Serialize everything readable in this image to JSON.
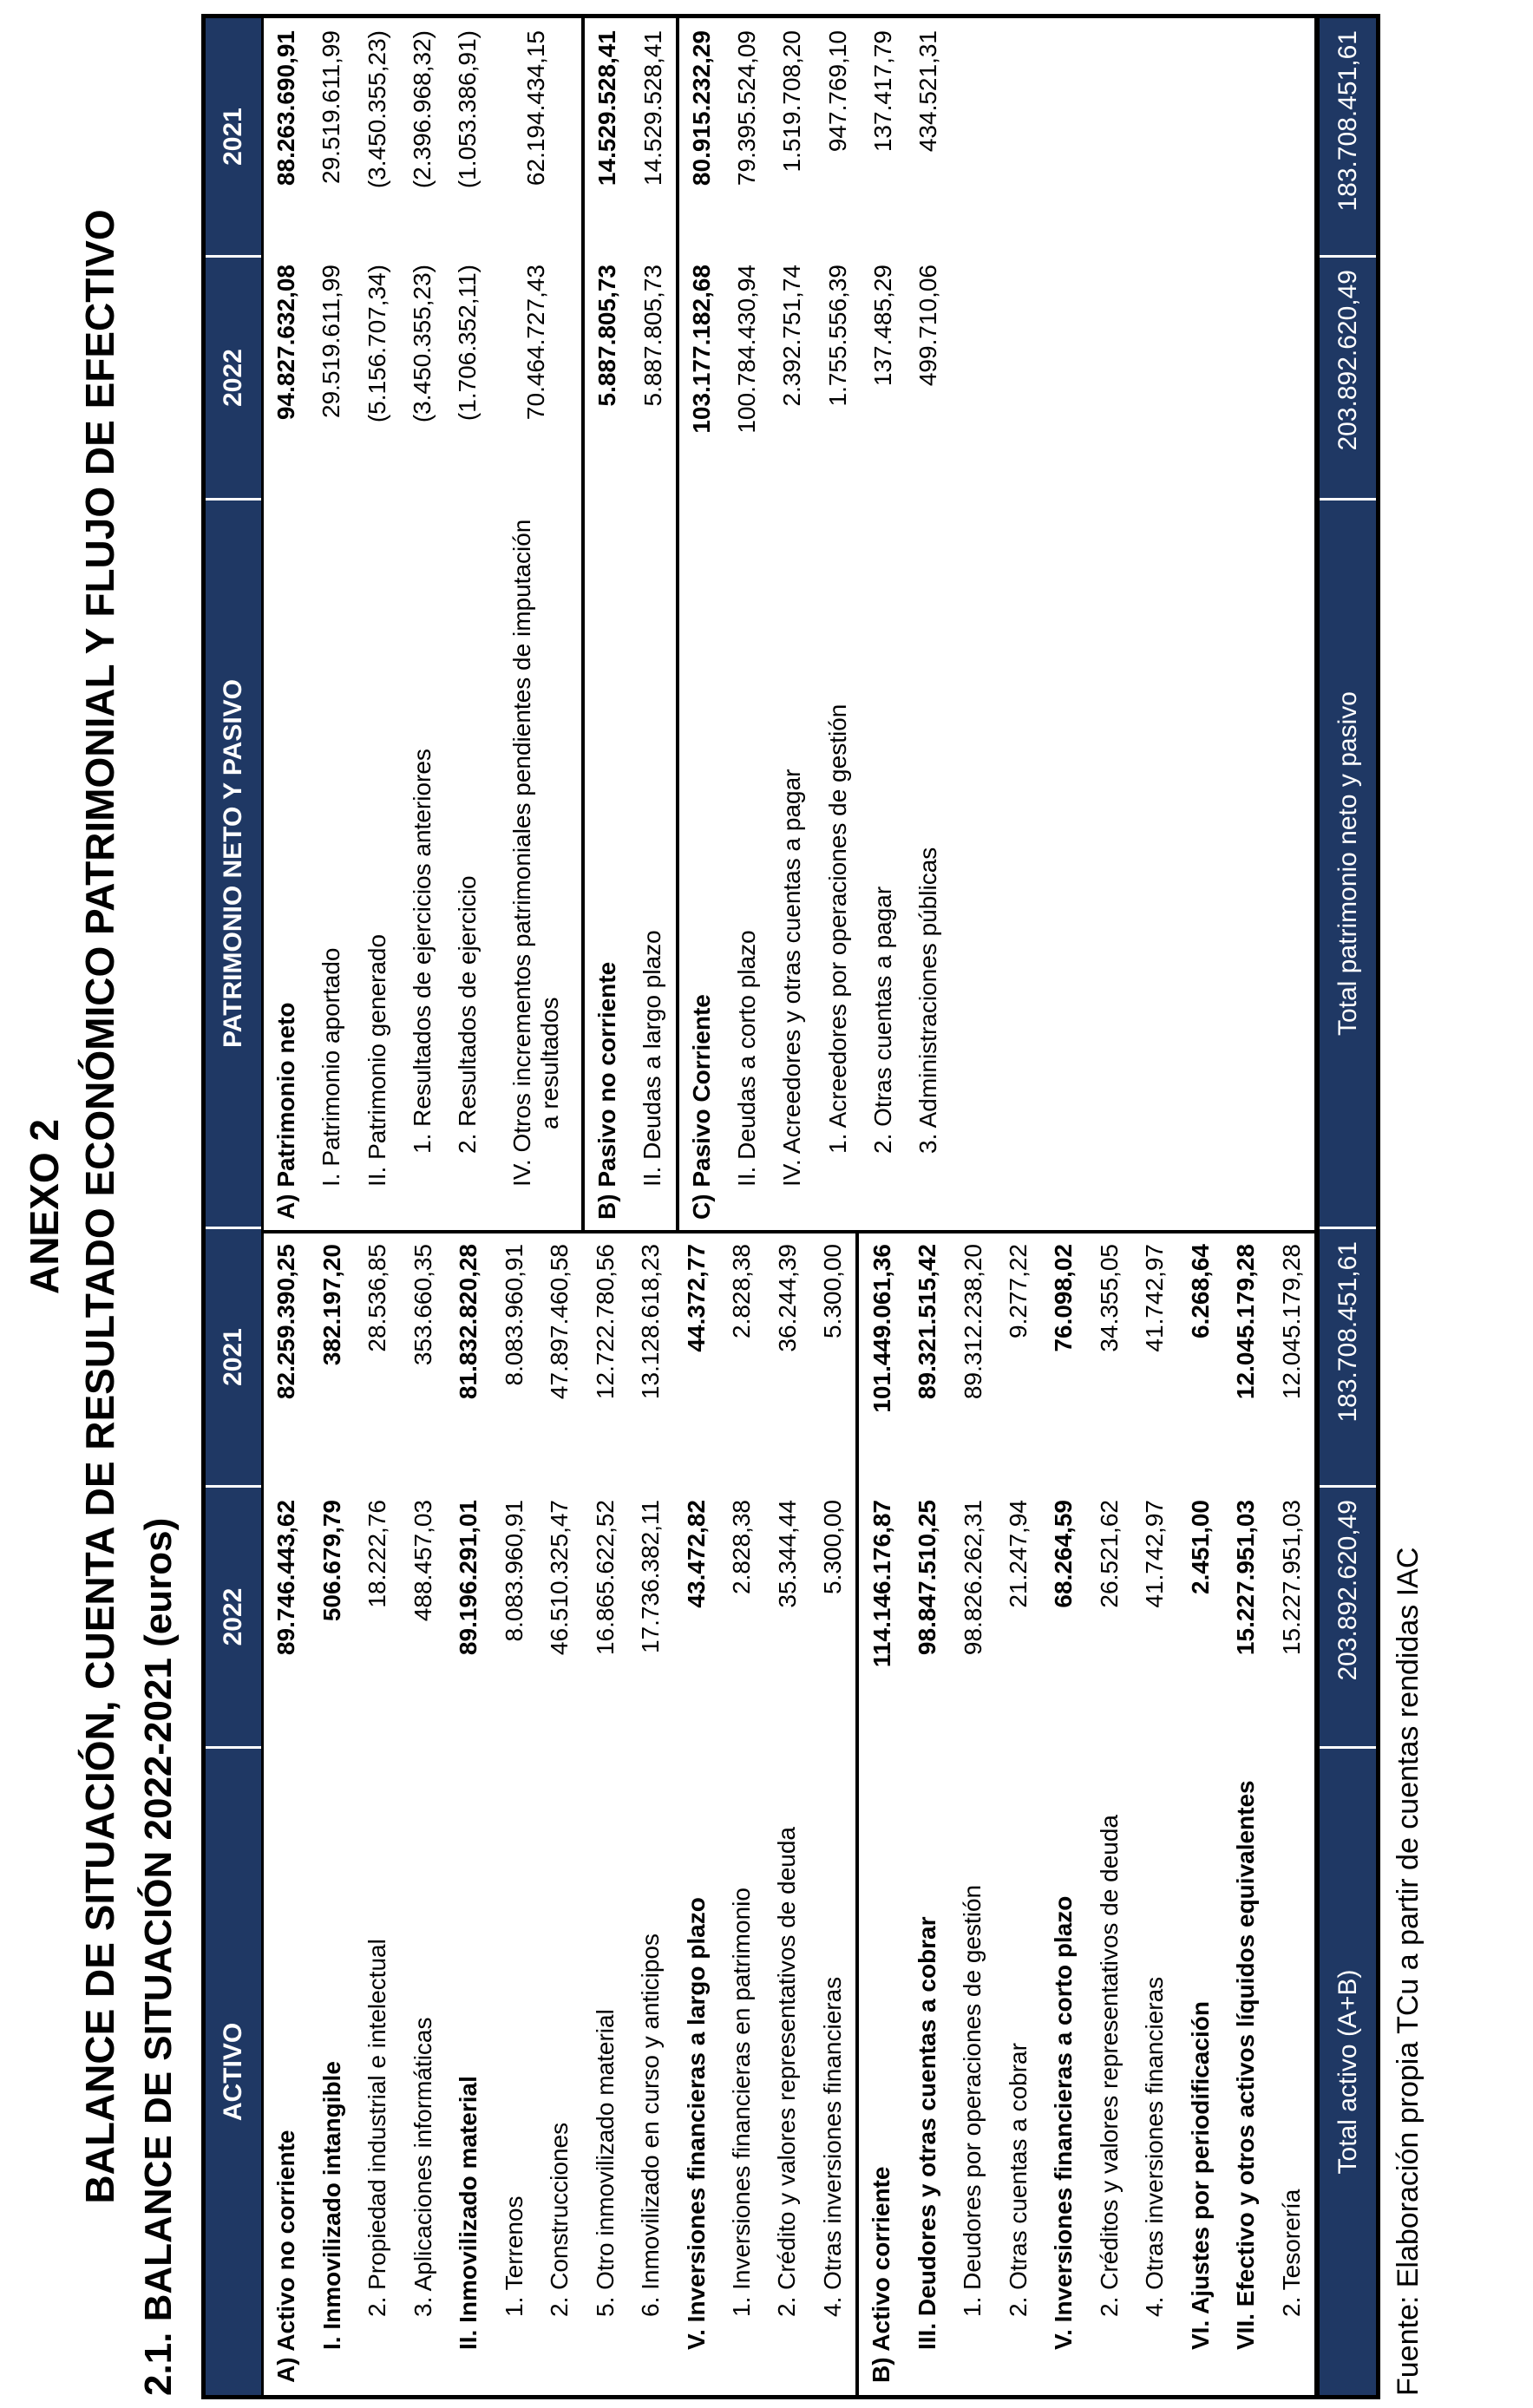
{
  "page": {
    "title_line1": "ANEXO 2",
    "title_line2": "BALANCE DE SITUACIÓN, CUENTA DE RESULTADO ECONÓMICO PATRIMONIAL Y FLUJO DE EFECTIVO",
    "subtitle": "2.1. BALANCE DE SITUACIÓN 2022-2021 (euros)",
    "source_note": "Fuente: Elaboración propia TCu a partir de cuentas rendidas IAC",
    "colors": {
      "band_bg": "#1f3864",
      "band_text": "#ffffff",
      "border": "#000000"
    }
  },
  "table": {
    "activo": {
      "header": "ACTIVO",
      "col_2022": "2022",
      "col_2021": "2021",
      "rows": [
        {
          "label": "A) Activo no corriente",
          "v2022": "89.746.443,62",
          "v2021": "82.259.390,25",
          "bold": true,
          "indent": 0
        },
        {
          "label": "I. Inmovilizado intangible",
          "v2022": "506.679,79",
          "v2021": "382.197,20",
          "bold": true,
          "indent": 1
        },
        {
          "label": "2. Propiedad industrial e intelectual",
          "v2022": "18.222,76",
          "v2021": "28.536,85",
          "bold": false,
          "indent": 2
        },
        {
          "label": "3. Aplicaciones informáticas",
          "v2022": "488.457,03",
          "v2021": "353.660,35",
          "bold": false,
          "indent": 2
        },
        {
          "label": "II. Inmovilizado material",
          "v2022": "89.196.291,01",
          "v2021": "81.832.820,28",
          "bold": true,
          "indent": 1
        },
        {
          "label": "1. Terrenos",
          "v2022": "8.083.960,91",
          "v2021": "8.083.960,91",
          "bold": false,
          "indent": 2
        },
        {
          "label": "2. Construcciones",
          "v2022": "46.510.325,47",
          "v2021": "47.897.460,58",
          "bold": false,
          "indent": 2
        },
        {
          "label": "5. Otro inmovilizado material",
          "v2022": "16.865.622,52",
          "v2021": "12.722.780,56",
          "bold": false,
          "indent": 2
        },
        {
          "label": "6. Inmovilizado en curso y anticipos",
          "v2022": "17.736.382,11",
          "v2021": "13.128.618,23",
          "bold": false,
          "indent": 2
        },
        {
          "label": "V. Inversiones financieras a largo plazo",
          "v2022": "43.472,82",
          "v2021": "44.372,77",
          "bold": true,
          "indent": 1
        },
        {
          "label": "1. Inversiones financieras en patrimonio",
          "v2022": "2.828,38",
          "v2021": "2.828,38",
          "bold": false,
          "indent": 2
        },
        {
          "label": "2. Crédito y valores representativos de deuda",
          "v2022": "35.344,44",
          "v2021": "36.244,39",
          "bold": false,
          "indent": 2
        },
        {
          "label": "4. Otras inversiones financieras",
          "v2022": "5.300,00",
          "v2021": "5.300,00",
          "bold": false,
          "indent": 2
        },
        {
          "label": "B) Activo corriente",
          "v2022": "114.146.176,87",
          "v2021": "101.449.061,36",
          "bold": true,
          "indent": 0,
          "divider": true
        },
        {
          "label": "III. Deudores y otras cuentas a cobrar",
          "v2022": "98.847.510,25",
          "v2021": "89.321.515,42",
          "bold": true,
          "indent": 1
        },
        {
          "label": "1. Deudores por operaciones de gestión",
          "v2022": "98.826.262,31",
          "v2021": "89.312.238,20",
          "bold": false,
          "indent": 2
        },
        {
          "label": "2. Otras cuentas a cobrar",
          "v2022": "21.247,94",
          "v2021": "9.277,22",
          "bold": false,
          "indent": 2
        },
        {
          "label": "V. Inversiones financieras a corto plazo",
          "v2022": "68.264,59",
          "v2021": "76.098,02",
          "bold": true,
          "indent": 1
        },
        {
          "label": "2. Créditos y valores representativos de deuda",
          "v2022": "26.521,62",
          "v2021": "34.355,05",
          "bold": false,
          "indent": 2
        },
        {
          "label": "4. Otras inversiones financieras",
          "v2022": "41.742,97",
          "v2021": "41.742,97",
          "bold": false,
          "indent": 2
        },
        {
          "label": "VI. Ajustes por periodificación",
          "v2022": "2.451,00",
          "v2021": "6.268,64",
          "bold": true,
          "indent": 1
        },
        {
          "label": "VII. Efectivo y otros activos líquidos equivalentes",
          "v2022": "15.227.951,03",
          "v2021": "12.045.179,28",
          "bold": true,
          "indent": 1
        },
        {
          "label": "2. Tesorería",
          "v2022": "15.227.951,03",
          "v2021": "12.045.179,28",
          "bold": false,
          "indent": 2
        }
      ],
      "total": {
        "label": "Total activo (A+B)",
        "v2022": "203.892.620,49",
        "v2021": "183.708.451,61"
      }
    },
    "pasivo": {
      "header": "PATRIMONIO NETO Y PASIVO",
      "col_2022": "2022",
      "col_2021": "2021",
      "rows": [
        {
          "label": "A) Patrimonio neto",
          "v2022": "94.827.632,08",
          "v2021": "88.263.690,91",
          "bold": true,
          "indent": 0
        },
        {
          "label": "I. Patrimonio aportado",
          "v2022": "29.519.611,99",
          "v2021": "29.519.611,99",
          "bold": false,
          "indent": 1
        },
        {
          "label": "II. Patrimonio generado",
          "v2022": "(5.156.707,34)",
          "v2021": "(3.450.355,23)",
          "bold": false,
          "indent": 1
        },
        {
          "label": "1. Resultados de ejercicios anteriores",
          "v2022": "(3.450.355,23)",
          "v2021": "(2.396.968,32)",
          "bold": false,
          "indent": 2
        },
        {
          "label": "2. Resultados de ejercicio",
          "v2022": "(1.706.352,11)",
          "v2021": "(1.053.386,91)",
          "bold": false,
          "indent": 2
        },
        {
          "label": "IV. Otros incrementos patrimoniales pendientes de imputación a resultados",
          "v2022": "70.464.727,43",
          "v2021": "62.194.434,15",
          "bold": false,
          "indent": 1,
          "wrap": true
        },
        {
          "label": "B) Pasivo no corriente",
          "v2022": "5.887.805,73",
          "v2021": "14.529.528,41",
          "bold": true,
          "indent": 0,
          "divider": true
        },
        {
          "label": "II. Deudas a largo plazo",
          "v2022": "5.887.805,73",
          "v2021": "14.529.528,41",
          "bold": false,
          "indent": 1
        },
        {
          "label": "C) Pasivo Corriente",
          "v2022": "103.177.182,68",
          "v2021": "80.915.232,29",
          "bold": true,
          "indent": 0,
          "divider": true
        },
        {
          "label": "II. Deudas a corto plazo",
          "v2022": "100.784.430,94",
          "v2021": "79.395.524,09",
          "bold": false,
          "indent": 1
        },
        {
          "label": "IV. Acreedores y otras cuentas a pagar",
          "v2022": "2.392.751,74",
          "v2021": "1.519.708,20",
          "bold": false,
          "indent": 1
        },
        {
          "label": "1. Acreedores por operaciones de gestión",
          "v2022": "1.755.556,39",
          "v2021": "947.769,10",
          "bold": false,
          "indent": 2
        },
        {
          "label": "2. Otras cuentas a pagar",
          "v2022": "137.485,29",
          "v2021": "137.417,79",
          "bold": false,
          "indent": 2
        },
        {
          "label": "3. Administraciones públicas",
          "v2022": "499.710,06",
          "v2021": "434.521,31",
          "bold": false,
          "indent": 2
        }
      ],
      "total": {
        "label": "Total patrimonio neto y pasivo",
        "v2022": "203.892.620,49",
        "v2021": "183.708.451,61"
      }
    }
  }
}
